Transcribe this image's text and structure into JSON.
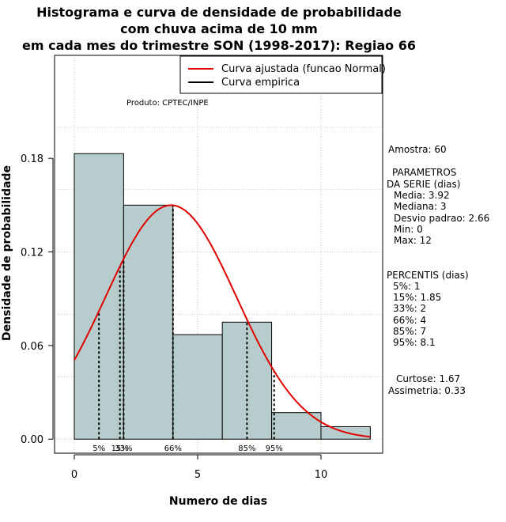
{
  "chart_data": {
    "type": "histogram",
    "title_lines": [
      "Histograma e curva de densidade de probabilidade",
      "com chuva acima de 10 mm",
      "em cada mes do trimestre SON (1998-2017): Regiao 66"
    ],
    "xlabel": "Numero de dias",
    "ylabel": "Densidade de probabilidade",
    "xlim": [
      -0.8,
      12.5
    ],
    "ylim": [
      -0.009,
      0.246
    ],
    "x_ticks": [
      0,
      5,
      10
    ],
    "y_ticks": [
      0.0,
      0.06,
      0.12,
      0.18
    ],
    "x_tick_labels": [
      "0",
      "5",
      "10"
    ],
    "y_tick_labels": [
      "0.00",
      "0.06",
      "0.12",
      "0.18"
    ],
    "bins": [
      {
        "x0": 0,
        "x1": 2,
        "density": 0.183
      },
      {
        "x0": 2,
        "x1": 4,
        "density": 0.15
      },
      {
        "x0": 4,
        "x1": 6,
        "density": 0.067
      },
      {
        "x0": 6,
        "x1": 8,
        "density": 0.075
      },
      {
        "x0": 8,
        "x1": 10,
        "density": 0.017
      },
      {
        "x0": 10,
        "x1": 12,
        "density": 0.008
      }
    ],
    "bar_fill": "#b7cdcd",
    "curve_color": "#e00000",
    "normal_fit": {
      "mean": 3.92,
      "sd": 2.66,
      "x_from": 0,
      "x_to": 12
    },
    "percentiles": [
      {
        "label": "5%",
        "value": 1
      },
      {
        "label": "15%",
        "value": 1.85
      },
      {
        "label": "33%",
        "value": 2
      },
      {
        "label": "66%",
        "value": 4
      },
      {
        "label": "85%",
        "value": 7
      },
      {
        "label": "95%",
        "value": 8.1
      }
    ],
    "percentile_markers": [
      {
        "label": "5%",
        "value": 1
      },
      {
        "label": "15%",
        "value": 1.85
      },
      {
        "label": "33%",
        "value": 2
      },
      {
        "label": "66%",
        "value": 4
      },
      {
        "label": "85%",
        "value": 7
      },
      {
        "label": "95%",
        "value": 8.1
      }
    ],
    "legend": {
      "position": "top-right",
      "entries": [
        {
          "label": "Curva ajustada (funcao Normal)",
          "color": "#e00000"
        },
        {
          "label": "Curva empirica",
          "color": "#000000"
        }
      ]
    },
    "product_label": "Produto: CPTEC/INPE",
    "grid": true
  },
  "stats": {
    "amostra": "Amostra: 60",
    "param_title1": "PARAMETROS",
    "param_title2": "DA SERIE (dias)",
    "media": "Media: 3.92",
    "mediana": "Mediana: 3",
    "desvio": "Desvio padrao: 2.66",
    "min": "Min: 0",
    "max": "Max: 12",
    "percentis_title": "PERCENTIS (dias)",
    "p5": "5%: 1",
    "p15": "15%: 1.85",
    "p33": "33%: 2",
    "p66": "66%: 4",
    "p85": "85%: 7",
    "p95": "95%: 8.1",
    "curtose": "Curtose: 1.67",
    "assimetria": "Assimetria: 0.33"
  }
}
